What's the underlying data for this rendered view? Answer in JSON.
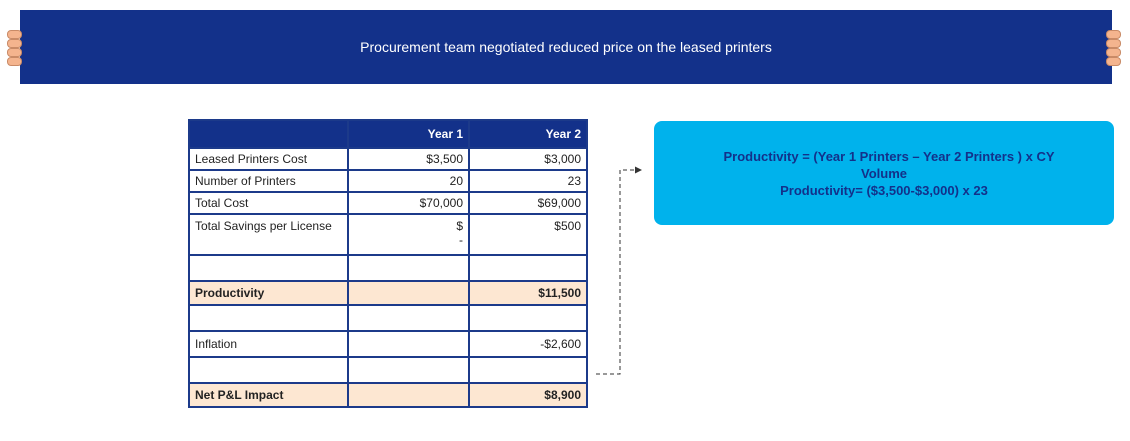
{
  "banner": {
    "title": "Procurement team negotiated reduced price on the leased printers"
  },
  "table": {
    "headers": [
      "",
      "Year 1",
      "Year 2"
    ],
    "rows": [
      {
        "label": "Leased Printers Cost",
        "year1": "$3,500",
        "year2": "$3,000"
      },
      {
        "label": "Number of Printers",
        "year1": "20",
        "year2": "23"
      },
      {
        "label": "Total Cost",
        "year1": "$70,000",
        "year2": "$69,000"
      },
      {
        "label": "Total Savings per License",
        "year1_top": "$",
        "year1_bottom": "-",
        "year2": "$500"
      },
      {
        "label": "",
        "year1": "",
        "year2": ""
      },
      {
        "label": "Productivity",
        "year1": "",
        "year2": "$11,500"
      },
      {
        "label": "",
        "year1": "",
        "year2": ""
      },
      {
        "label": "Inflation",
        "year1": "",
        "year2": "-$2,600"
      },
      {
        "label": "",
        "year1": "",
        "year2": ""
      },
      {
        "label": "Net P&L Impact",
        "year1": "",
        "year2": "$8,900"
      }
    ]
  },
  "callout": {
    "line1": "Productivity = (Year 1 Printers – Year 2 Printers ) x CY",
    "line2": "Volume",
    "line3": "Productivity= ($3,500-$3,000) x 23"
  },
  "colors": {
    "navy": "#13318a",
    "callout_bg": "#00b2ec",
    "highlight_row": "#fde7d2"
  }
}
